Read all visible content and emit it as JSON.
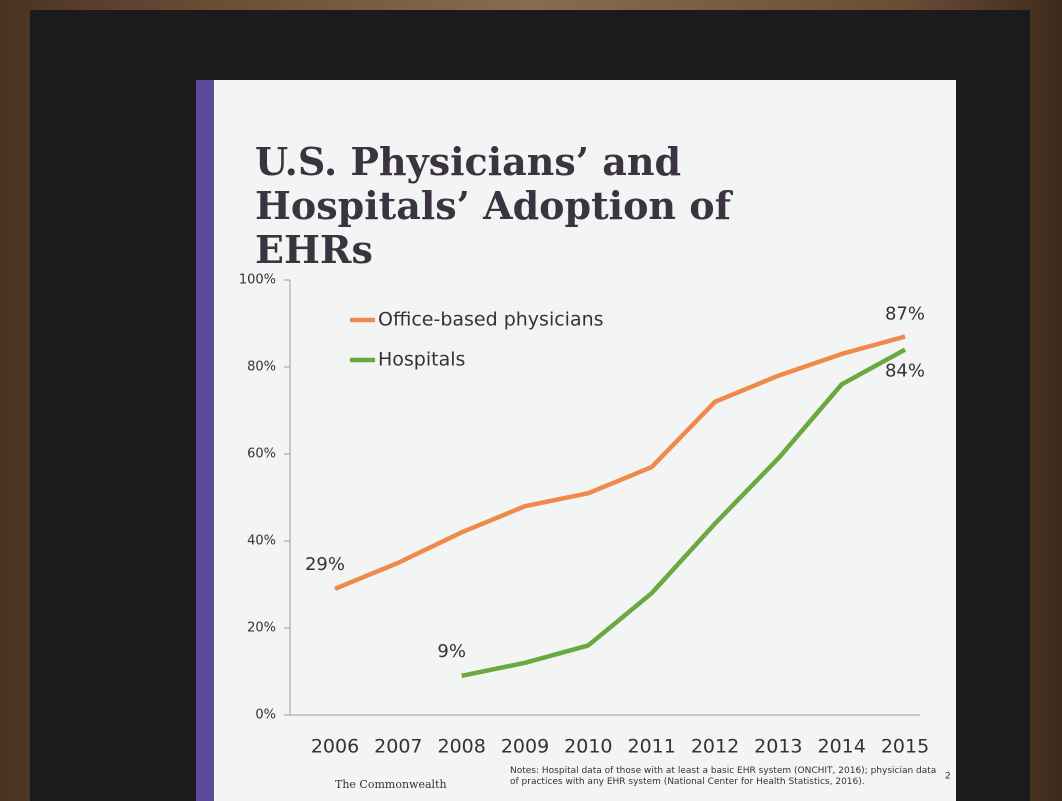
{
  "chart_data": {
    "type": "line",
    "title": "U.S. Physicians’ and Hospitals’ Adoption of EHRs",
    "categories": [
      "2006",
      "2007",
      "2008",
      "2009",
      "2010",
      "2011",
      "2012",
      "2013",
      "2014",
      "2015"
    ],
    "series": [
      {
        "name": "Office-based physicians",
        "color": "#f08a4b",
        "values": [
          29,
          35,
          42,
          48,
          51,
          57,
          72,
          78,
          83,
          87
        ],
        "value_labels": [
          "29%",
          null,
          null,
          null,
          null,
          null,
          null,
          null,
          null,
          "87%"
        ]
      },
      {
        "name": "Hospitals",
        "color": "#6aa842",
        "values": [
          null,
          null,
          9,
          12,
          16,
          28,
          44,
          59,
          76,
          84
        ],
        "value_labels": [
          null,
          null,
          "9%",
          null,
          null,
          null,
          null,
          null,
          null,
          "84%"
        ]
      }
    ],
    "ylim": [
      0,
      100
    ],
    "yticks": [
      {
        "value": 0,
        "label": "0%"
      },
      {
        "value": 20,
        "label": "20%"
      },
      {
        "value": 40,
        "label": "40%"
      },
      {
        "value": 60,
        "label": "60%"
      },
      {
        "value": 80,
        "label": "80%"
      },
      {
        "value": 100,
        "label": "100%"
      }
    ],
    "legend": "upper left",
    "notes": "Notes: Hospital data of those with at least a basic EHR system (ONCHIT, 2016); physician data of practices with any EHR system (National Center for Health Statistics, 2016).",
    "source": "The Commonwealth",
    "page_number": "2"
  }
}
